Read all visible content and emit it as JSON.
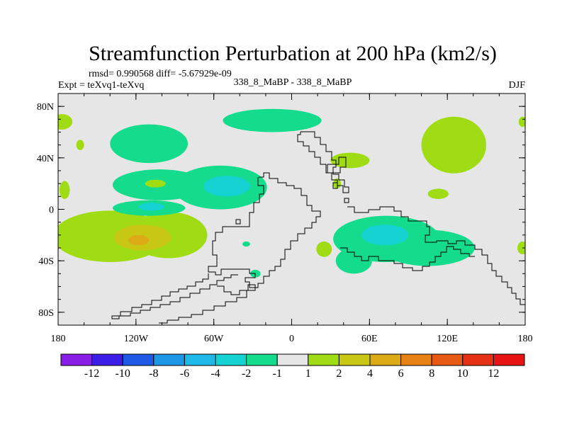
{
  "chart_data": {
    "type": "heatmap",
    "title": "Streamfunction Perturbation at 200 hPa (km2/s)",
    "stats_text": "rmsd= 0.990568 diff= -5.67929e-09",
    "left_label": "Expt = teXvq1-teXvq",
    "center_label": "338_8_MaBP - 338_8_MaBP",
    "right_label": "DJF",
    "x_axis": {
      "range": [
        -180,
        180
      ],
      "ticks": [
        -180,
        -120,
        -60,
        0,
        60,
        120,
        180
      ],
      "tick_labels": [
        "180",
        "120W",
        "60W",
        "0",
        "60E",
        "120E",
        "180"
      ]
    },
    "y_axis": {
      "range": [
        -90,
        90
      ],
      "ticks": [
        80,
        40,
        0,
        -40,
        -80
      ],
      "tick_labels": [
        "80N",
        "40N",
        "0",
        "40S",
        "80S"
      ]
    },
    "colorbar": {
      "labels": [
        "-12",
        "-10",
        "-8",
        "-6",
        "-4",
        "-2",
        "-1",
        "1",
        "2",
        "4",
        "6",
        "8",
        "10",
        "12"
      ],
      "colors": [
        "#8a1ee6",
        "#3c1ee6",
        "#1e5ae6",
        "#1e96e6",
        "#1eb9e6",
        "#14d2d2",
        "#14dc8c",
        "#e6e6e6",
        "#a0dc14",
        "#c8c814",
        "#dcaa14",
        "#e68214",
        "#e65a14",
        "#e63214",
        "#e61414"
      ]
    },
    "colors": {
      "background": "#e6e6e6",
      "level_pos1": "#a0dc14",
      "level_pos2": "#c8c814",
      "level_pos3": "#dcaa14",
      "level_neg1": "#14dc8c",
      "level_neg2": "#14d2d2"
    },
    "regions": [
      {
        "level": "1..2",
        "lon": -175,
        "lat": 15,
        "rlon": 4,
        "rlat": 7
      },
      {
        "level": "1..2",
        "lon": -177,
        "lat": 68,
        "rlon": 8,
        "rlat": 6
      },
      {
        "level": "1..2",
        "lon": -163,
        "lat": 50,
        "rlon": 3,
        "rlat": 4
      },
      {
        "level": "1..2",
        "lon": -140,
        "lat": -21,
        "rlon": 44,
        "rlat": 20
      },
      {
        "level": "1..2",
        "lon": -95,
        "lat": -20,
        "rlon": 30,
        "rlat": 18
      },
      {
        "level": "2..4",
        "lon": -115,
        "lat": -22,
        "rlon": 22,
        "rlat": 10
      },
      {
        "level": "4..6",
        "lon": -118,
        "lat": -24,
        "rlon": 8,
        "rlat": 4
      },
      {
        "level": "-2..-1",
        "lon": -110,
        "lat": 51,
        "rlon": 30,
        "rlat": 15
      },
      {
        "level": "-2..-1",
        "lon": -15,
        "lat": 69,
        "rlon": 38,
        "rlat": 9
      },
      {
        "level": "-2..-1",
        "lon": -55,
        "lat": 17,
        "rlon": 36,
        "rlat": 17
      },
      {
        "level": "-2..-1",
        "lon": -102,
        "lat": 19,
        "rlon": 36,
        "rlat": 12
      },
      {
        "level": "-2..-1",
        "lon": -110,
        "lat": 1,
        "rlon": 28,
        "rlat": 6
      },
      {
        "level": "-4..-2",
        "lon": -50,
        "lat": 18,
        "rlon": 18,
        "rlat": 8
      },
      {
        "level": "-4..-2",
        "lon": -108,
        "lat": 2,
        "rlon": 10,
        "rlat": 3
      },
      {
        "level": "1..2",
        "lon": -105,
        "lat": 20,
        "rlon": 8,
        "rlat": 3
      },
      {
        "level": "-2..-1",
        "lon": -35,
        "lat": -27,
        "rlon": 3,
        "rlat": 2
      },
      {
        "level": "-2..-1",
        "lon": -28,
        "lat": -50,
        "rlon": 4,
        "rlat": 3
      },
      {
        "level": "1..2",
        "lon": 45,
        "lat": 38,
        "rlon": 15,
        "rlat": 6
      },
      {
        "level": "1..2",
        "lon": 35,
        "lat": 20,
        "rlon": 3,
        "rlat": 4
      },
      {
        "level": "1..2",
        "lon": 125,
        "lat": 50,
        "rlon": 25,
        "rlat": 22
      },
      {
        "level": "1..2",
        "lon": 113,
        "lat": 12,
        "rlon": 8,
        "rlat": 4
      },
      {
        "level": "1..2",
        "lon": 178,
        "lat": -30,
        "rlon": 4,
        "rlat": 5
      },
      {
        "level": "1..2",
        "lon": 178,
        "lat": 68,
        "rlon": 3,
        "rlat": 4
      },
      {
        "level": "1..2",
        "lon": 25,
        "lat": -31,
        "rlon": 6,
        "rlat": 6
      },
      {
        "level": "-2..-1",
        "lon": 73,
        "lat": -23,
        "rlon": 41,
        "rlat": 18
      },
      {
        "level": "-2..-1",
        "lon": 105,
        "lat": -30,
        "rlon": 36,
        "rlat": 14
      },
      {
        "level": "-2..-1",
        "lon": 48,
        "lat": -40,
        "rlon": 14,
        "rlat": 10
      },
      {
        "level": "-4..-2",
        "lon": 72,
        "lat": -20,
        "rlon": 18,
        "rlat": 8
      }
    ]
  }
}
